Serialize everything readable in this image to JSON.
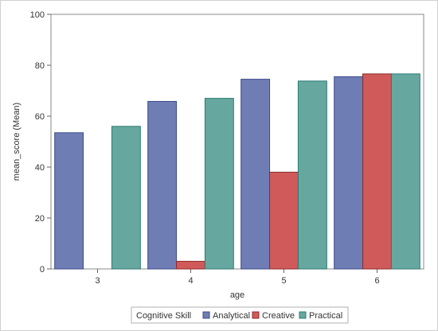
{
  "chart_data": {
    "type": "bar",
    "title": "",
    "xlabel": "age",
    "ylabel": "mean_score (Mean)",
    "categories": [
      "3",
      "4",
      "5",
      "6"
    ],
    "series": [
      {
        "name": "Analytical",
        "values": [
          53.5,
          65.8,
          74.5,
          75.5
        ],
        "color": "#6f7db5"
      },
      {
        "name": "Creative",
        "values": [
          0,
          3,
          38,
          76.6
        ],
        "color": "#d05a5a"
      },
      {
        "name": "Practical",
        "values": [
          56,
          67,
          73.8,
          76.6
        ],
        "color": "#66a8a0"
      }
    ],
    "ylim": [
      0,
      100
    ],
    "yticks": [
      0,
      20,
      40,
      60,
      80,
      100
    ],
    "grid": false,
    "legend": {
      "title": "Cognitive Skill",
      "position": "bottom"
    }
  }
}
